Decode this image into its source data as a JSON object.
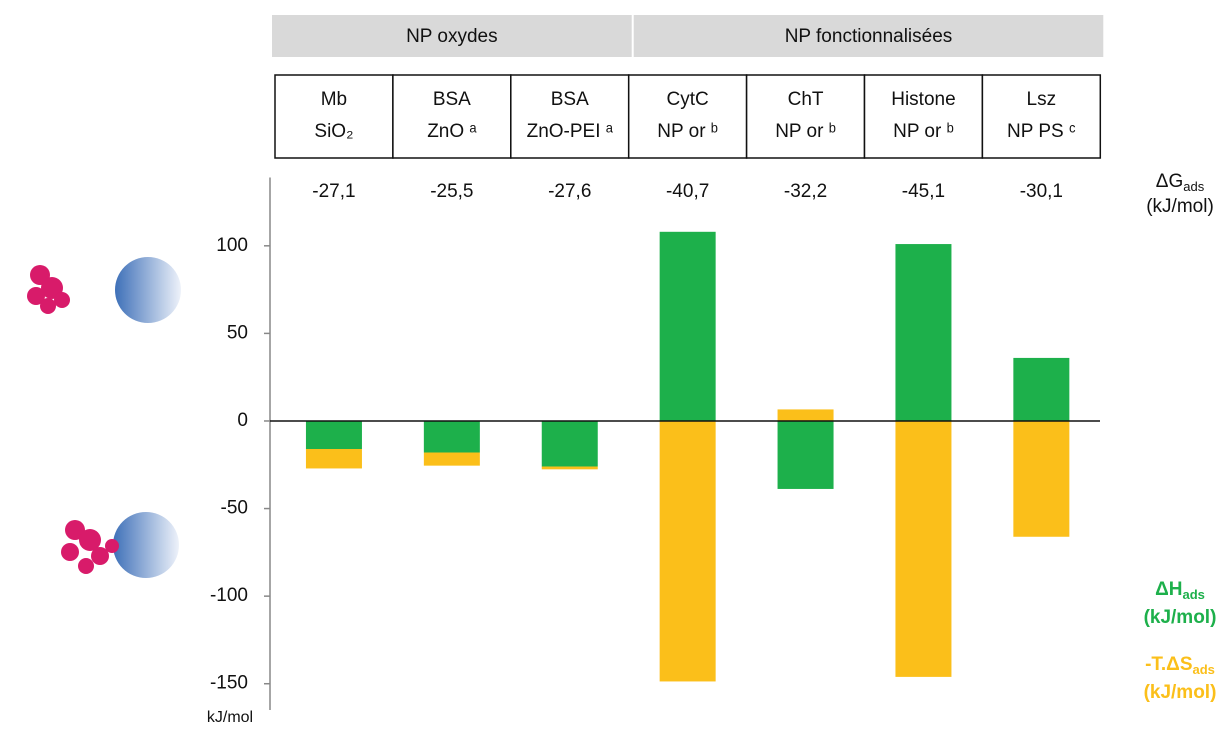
{
  "chart_data": {
    "type": "stacked_bar",
    "groups": [
      {
        "label": "NP oxydes",
        "span": [
          0,
          2
        ]
      },
      {
        "label": "NP fonctionnalisées",
        "span": [
          3,
          6
        ]
      }
    ],
    "categories": [
      [
        "Mb",
        "SiO₂"
      ],
      [
        "BSA",
        "ZnO ᵃ"
      ],
      [
        "BSA",
        "ZnO-PEI ᵃ"
      ],
      [
        "CytC",
        "NP or ᵇ"
      ],
      [
        "ChT",
        "NP or ᵇ"
      ],
      [
        "Histone",
        "NP or ᵇ"
      ],
      [
        "Lsz",
        "NP PS ᶜ"
      ]
    ],
    "dg": {
      "name": "ΔG",
      "subscript": "ads",
      "unit": "(kJ/mol)",
      "values": [
        -27.1,
        -25.5,
        -27.6,
        -40.7,
        -32.2,
        -45.1,
        -30.1
      ],
      "value_labels": [
        "-27,1",
        "-25,5",
        "-27,6",
        "-40,7",
        "-32,2",
        "-45,1",
        "-30,1"
      ]
    },
    "series": [
      {
        "name": "ΔH",
        "subscript": "ads",
        "unit": "(kJ/mol)",
        "color": "#1db04b",
        "values": [
          -16,
          -18,
          -26,
          108,
          -38.8,
          101,
          36
        ]
      },
      {
        "name": "-T.ΔS",
        "subscript": "ads",
        "unit": "(kJ/mol)",
        "color": "#fbbf1a",
        "values": [
          -11.1,
          -7.5,
          -1.6,
          -148.7,
          6.6,
          -146.1,
          -66.1
        ]
      }
    ],
    "y_unit": "kJ/mol",
    "ylim": [
      -165,
      139
    ],
    "yticks": [
      -150,
      -100,
      -50,
      0,
      50,
      100
    ]
  }
}
